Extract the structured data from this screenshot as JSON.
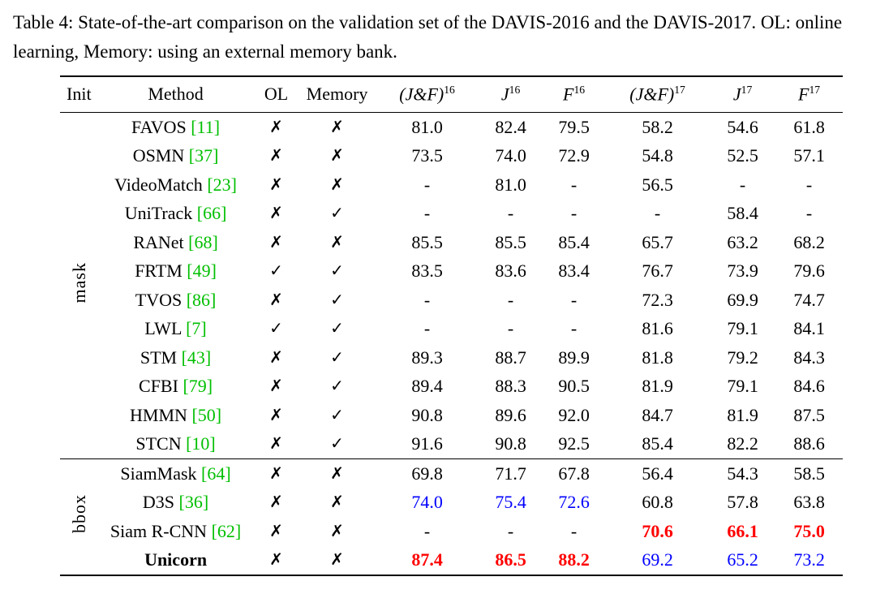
{
  "caption": "Table 4: State-of-the-art comparison on the validation set of the DAVIS-2016 and the DAVIS-2017. OL: online learning, Memory: using an external memory bank.",
  "colors": {
    "citation": "#00bf00",
    "best": "#ff0000",
    "second": "#0000ff"
  },
  "table": {
    "headers": [
      {
        "label": "Init",
        "key": "init"
      },
      {
        "label": "Method",
        "key": "method"
      },
      {
        "label": "OL",
        "key": "ol"
      },
      {
        "label": "Memory",
        "key": "memory"
      },
      {
        "label": "(J&F)",
        "sup": "16",
        "math": true,
        "key": "jf16"
      },
      {
        "label": "J",
        "sup": "16",
        "math": true,
        "key": "j16"
      },
      {
        "label": "F",
        "sup": "16",
        "math": true,
        "key": "f16"
      },
      {
        "label": "(J&F)",
        "sup": "17",
        "math": true,
        "key": "jf17"
      },
      {
        "label": "J",
        "sup": "17",
        "math": true,
        "key": "j17"
      },
      {
        "label": "F",
        "sup": "17",
        "math": true,
        "key": "f17"
      }
    ],
    "groups": [
      {
        "init": "mask",
        "rows": [
          {
            "method": "FAVOS",
            "cite": "11",
            "ol": "✗",
            "memory": "✗",
            "cells": [
              {
                "v": "81.0"
              },
              {
                "v": "82.4"
              },
              {
                "v": "79.5"
              },
              {
                "v": "58.2"
              },
              {
                "v": "54.6"
              },
              {
                "v": "61.8"
              }
            ]
          },
          {
            "method": "OSMN",
            "cite": "37",
            "ol": "✗",
            "memory": "✗",
            "cells": [
              {
                "v": "73.5"
              },
              {
                "v": "74.0"
              },
              {
                "v": "72.9"
              },
              {
                "v": "54.8"
              },
              {
                "v": "52.5"
              },
              {
                "v": "57.1"
              }
            ]
          },
          {
            "method": "VideoMatch",
            "cite": "23",
            "ol": "✗",
            "memory": "✗",
            "cells": [
              {
                "v": "-"
              },
              {
                "v": "81.0"
              },
              {
                "v": "-"
              },
              {
                "v": "56.5"
              },
              {
                "v": "-"
              },
              {
                "v": "-"
              }
            ]
          },
          {
            "method": "UniTrack",
            "cite": "66",
            "ol": "✗",
            "memory": "✓",
            "cells": [
              {
                "v": "-"
              },
              {
                "v": "-"
              },
              {
                "v": "-"
              },
              {
                "v": "-"
              },
              {
                "v": "58.4"
              },
              {
                "v": "-"
              }
            ]
          },
          {
            "method": "RANet",
            "cite": "68",
            "ol": "✗",
            "memory": "✗",
            "cells": [
              {
                "v": "85.5"
              },
              {
                "v": "85.5"
              },
              {
                "v": "85.4"
              },
              {
                "v": "65.7"
              },
              {
                "v": "63.2"
              },
              {
                "v": "68.2"
              }
            ]
          },
          {
            "method": "FRTM",
            "cite": "49",
            "ol": "✓",
            "memory": "✓",
            "cells": [
              {
                "v": "83.5"
              },
              {
                "v": "83.6"
              },
              {
                "v": "83.4"
              },
              {
                "v": "76.7"
              },
              {
                "v": "73.9"
              },
              {
                "v": "79.6"
              }
            ]
          },
          {
            "method": "TVOS",
            "cite": "86",
            "ol": "✗",
            "memory": "✓",
            "cells": [
              {
                "v": "-"
              },
              {
                "v": "-"
              },
              {
                "v": "-"
              },
              {
                "v": "72.3"
              },
              {
                "v": "69.9"
              },
              {
                "v": "74.7"
              }
            ]
          },
          {
            "method": "LWL",
            "cite": "7",
            "ol": "✓",
            "memory": "✓",
            "cells": [
              {
                "v": "-"
              },
              {
                "v": "-"
              },
              {
                "v": "-"
              },
              {
                "v": "81.6"
              },
              {
                "v": "79.1"
              },
              {
                "v": "84.1"
              }
            ]
          },
          {
            "method": "STM",
            "cite": "43",
            "ol": "✗",
            "memory": "✓",
            "cells": [
              {
                "v": "89.3"
              },
              {
                "v": "88.7"
              },
              {
                "v": "89.9"
              },
              {
                "v": "81.8"
              },
              {
                "v": "79.2"
              },
              {
                "v": "84.3"
              }
            ]
          },
          {
            "method": "CFBI",
            "cite": "79",
            "ol": "✗",
            "memory": "✓",
            "cells": [
              {
                "v": "89.4"
              },
              {
                "v": "88.3"
              },
              {
                "v": "90.5"
              },
              {
                "v": "81.9"
              },
              {
                "v": "79.1"
              },
              {
                "v": "84.6"
              }
            ]
          },
          {
            "method": "HMMN",
            "cite": "50",
            "ol": "✗",
            "memory": "✓",
            "cells": [
              {
                "v": "90.8"
              },
              {
                "v": "89.6"
              },
              {
                "v": "92.0"
              },
              {
                "v": "84.7"
              },
              {
                "v": "81.9"
              },
              {
                "v": "87.5"
              }
            ]
          },
          {
            "method": "STCN",
            "cite": "10",
            "ol": "✗",
            "memory": "✓",
            "cells": [
              {
                "v": "91.6"
              },
              {
                "v": "90.8"
              },
              {
                "v": "92.5"
              },
              {
                "v": "85.4"
              },
              {
                "v": "82.2"
              },
              {
                "v": "88.6"
              }
            ]
          }
        ]
      },
      {
        "init": "bbox",
        "rows": [
          {
            "method": "SiamMask",
            "cite": "64",
            "ol": "✗",
            "memory": "✗",
            "cells": [
              {
                "v": "69.8"
              },
              {
                "v": "71.7"
              },
              {
                "v": "67.8"
              },
              {
                "v": "56.4"
              },
              {
                "v": "54.3"
              },
              {
                "v": "58.5"
              }
            ]
          },
          {
            "method": "D3S",
            "cite": "36",
            "ol": "✗",
            "memory": "✗",
            "cells": [
              {
                "v": "74.0",
                "c": "blue"
              },
              {
                "v": "75.4",
                "c": "blue"
              },
              {
                "v": "72.6",
                "c": "blue"
              },
              {
                "v": "60.8"
              },
              {
                "v": "57.8"
              },
              {
                "v": "63.8"
              }
            ]
          },
          {
            "method": "Siam R-CNN",
            "cite": "62",
            "ol": "✗",
            "memory": "✗",
            "cells": [
              {
                "v": "-"
              },
              {
                "v": "-"
              },
              {
                "v": "-"
              },
              {
                "v": "70.6",
                "c": "red"
              },
              {
                "v": "66.1",
                "c": "red"
              },
              {
                "v": "75.0",
                "c": "red"
              }
            ]
          },
          {
            "method": "Unicorn",
            "bold": true,
            "ol": "✗",
            "memory": "✗",
            "cells": [
              {
                "v": "87.4",
                "c": "red"
              },
              {
                "v": "86.5",
                "c": "red"
              },
              {
                "v": "88.2",
                "c": "red"
              },
              {
                "v": "69.2",
                "c": "blue"
              },
              {
                "v": "65.2",
                "c": "blue"
              },
              {
                "v": "73.2",
                "c": "blue"
              }
            ]
          }
        ]
      }
    ]
  }
}
